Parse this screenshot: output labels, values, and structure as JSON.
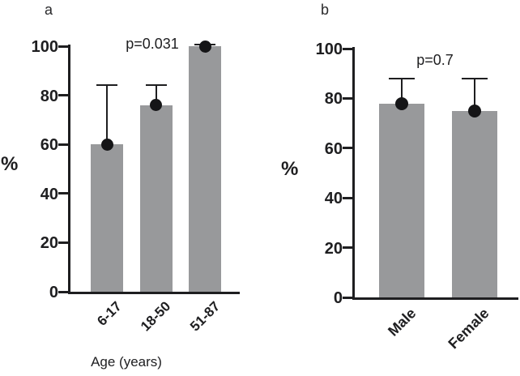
{
  "figure": {
    "panel_a_letter": "a",
    "panel_b_letter": "b",
    "background_color": "#ffffff",
    "ink_color": "#1e1e20",
    "bar_color": "#98999b"
  },
  "chart_data": [
    {
      "type": "bar",
      "panel": "a",
      "categories": [
        "6-17",
        "18-50",
        "51-87"
      ],
      "values": [
        60,
        76,
        100
      ],
      "error_high": [
        84,
        84,
        100.5
      ],
      "marker": "black-dot-at-bar-top",
      "annotation": "p=0.031",
      "xlabel": "Age (years)",
      "ylabel": "%",
      "ylim": [
        0,
        100
      ],
      "yticks": [
        "0",
        "20",
        "40",
        "60",
        "80",
        "100"
      ],
      "grid": "off",
      "legend": "none"
    },
    {
      "type": "bar",
      "panel": "b",
      "categories": [
        "Male",
        "Female"
      ],
      "values": [
        78,
        75
      ],
      "error_high": [
        88,
        88
      ],
      "marker": "black-dot-at-bar-top",
      "annotation": "p=0.7",
      "xlabel": "",
      "ylabel": "%",
      "ylim": [
        0,
        100
      ],
      "yticks": [
        "0",
        "20",
        "40",
        "60",
        "80",
        "100"
      ],
      "grid": "off",
      "legend": "none"
    }
  ]
}
